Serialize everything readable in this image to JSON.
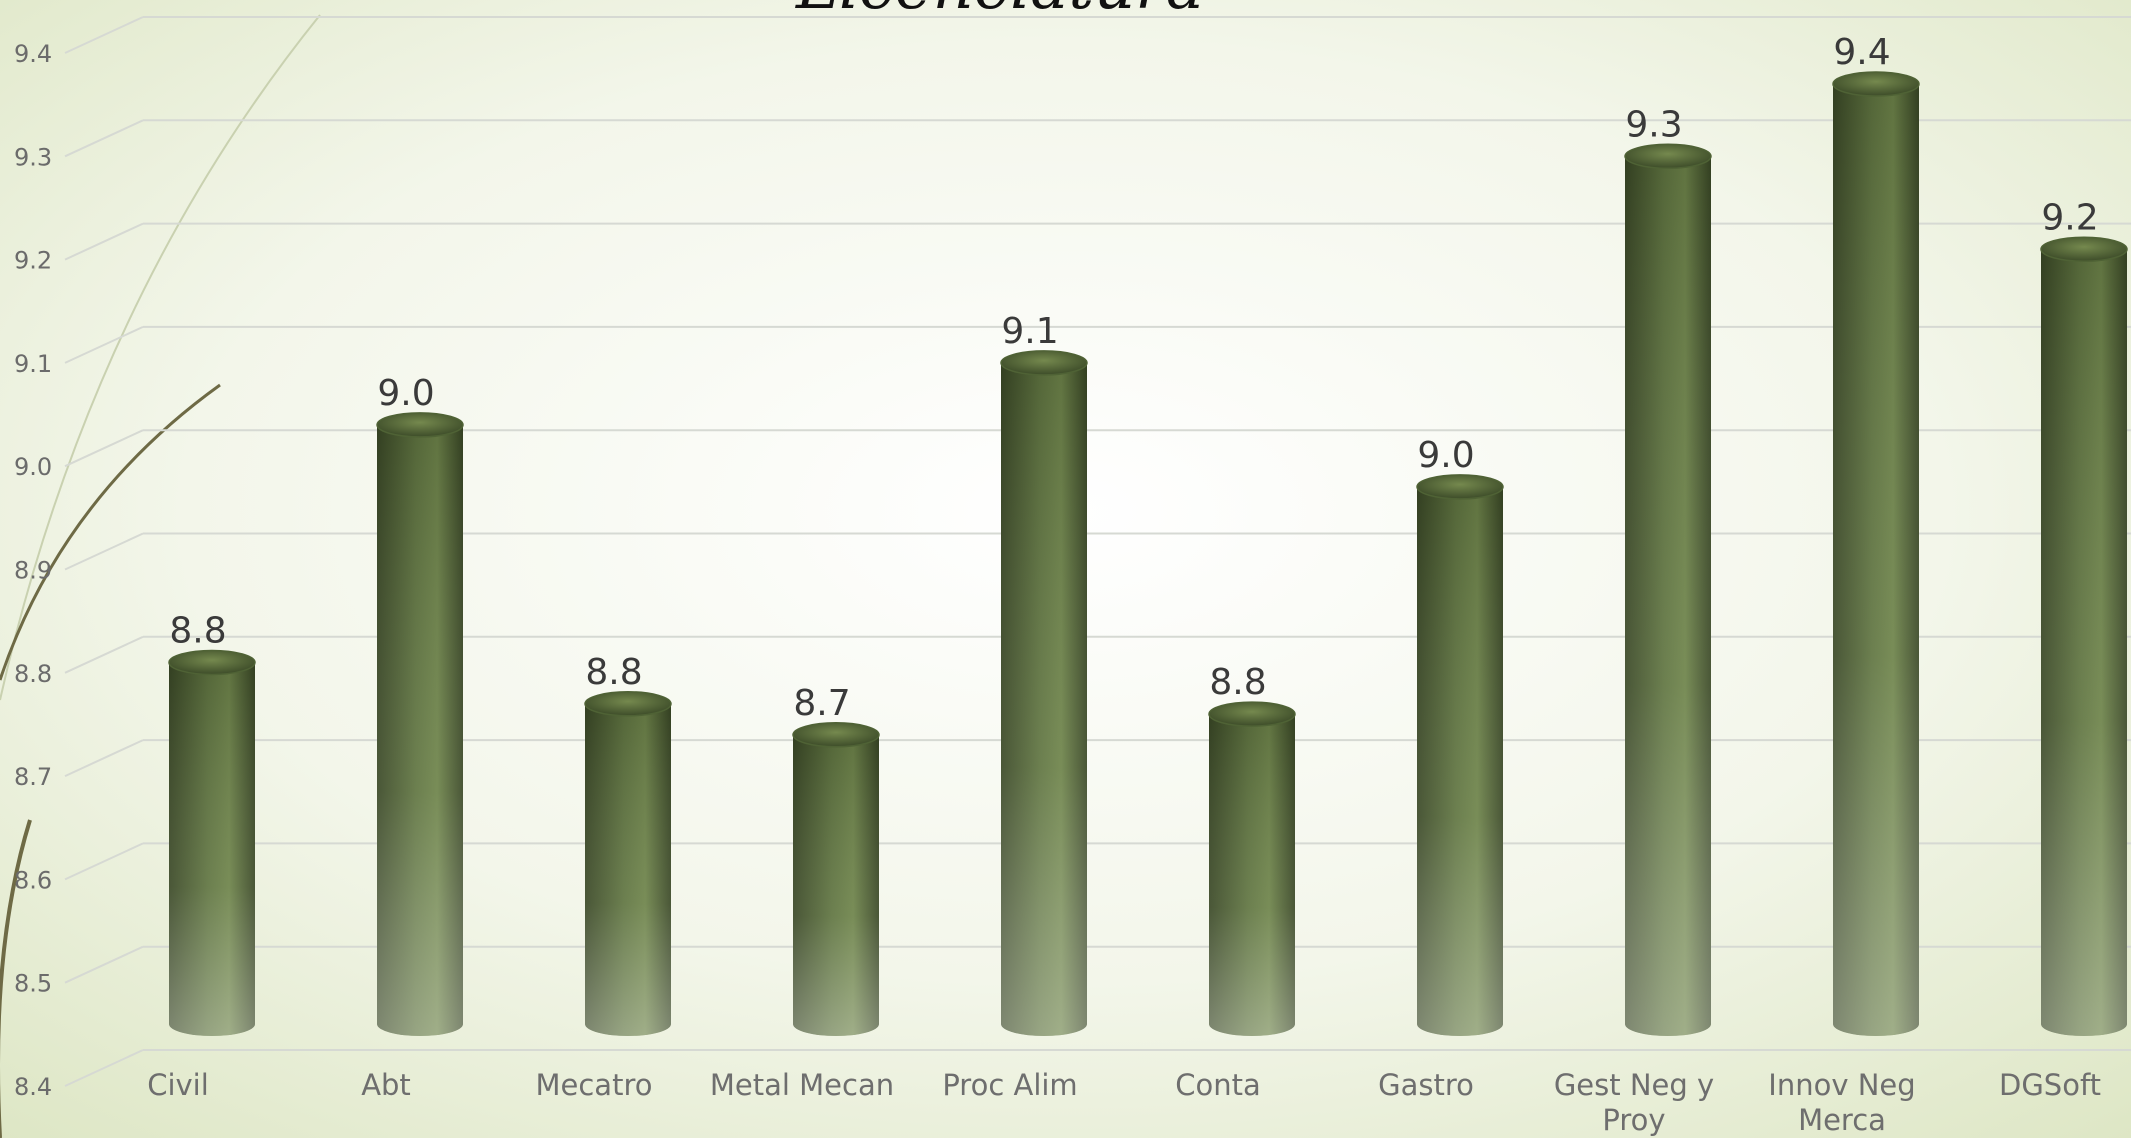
{
  "chart_data": {
    "type": "bar",
    "title": "Licenciatura",
    "xlabel": "",
    "ylabel": "",
    "categories": [
      [
        "Civil"
      ],
      [
        "Abt"
      ],
      [
        "Mecatro"
      ],
      [
        "Metal Mecan"
      ],
      [
        "Proc Alim"
      ],
      [
        "Conta"
      ],
      [
        "Gastro"
      ],
      [
        "Gest Neg y",
        "Proy"
      ],
      [
        "Innov Neg",
        "Merca"
      ],
      [
        "DGSoft"
      ]
    ],
    "values": [
      8.81,
      9.04,
      8.77,
      8.74,
      9.1,
      8.76,
      8.98,
      9.3,
      9.37,
      9.21
    ],
    "data_labels": [
      "8.8",
      "9.0",
      "8.8",
      "8.7",
      "9.1",
      "8.8",
      "9.0",
      "9.3",
      "9.4",
      "9.2"
    ],
    "y_ticks": [
      "8.4",
      "8.5",
      "8.6",
      "8.7",
      "8.8",
      "8.9",
      "9.0",
      "9.1",
      "9.2",
      "9.3",
      "9.4"
    ],
    "ylim": [
      8.4,
      9.4
    ],
    "grid": true,
    "legend": "none",
    "colors": {
      "bar_dark": "#3d4d2a",
      "bar_light": "#8fa36a",
      "background_center": "#ffffff",
      "background_edge": "#dfe8c8",
      "gridline": "#d6d9d3"
    }
  }
}
